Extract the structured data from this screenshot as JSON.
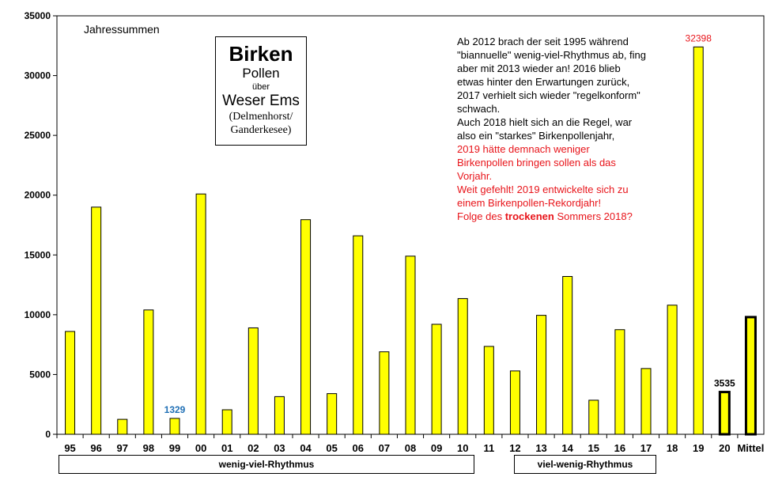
{
  "chart_data": {
    "type": "bar",
    "subtitle": "Jahressummen",
    "categories": [
      "95",
      "96",
      "97",
      "98",
      "99",
      "00",
      "01",
      "02",
      "03",
      "04",
      "05",
      "06",
      "07",
      "08",
      "09",
      "10",
      "11",
      "12",
      "13",
      "14",
      "15",
      "16",
      "17",
      "18",
      "19",
      "20",
      "Mittel"
    ],
    "values": [
      8600,
      19000,
      1250,
      10400,
      1329,
      20100,
      2050,
      8900,
      3150,
      17950,
      3400,
      16600,
      6900,
      14900,
      9200,
      11350,
      7350,
      5300,
      9950,
      13200,
      2850,
      8750,
      5500,
      10800,
      32398,
      3535,
      9800
    ],
    "labels": {
      "99": "1329",
      "19": "32398",
      "20": "3535"
    },
    "ylim": [
      0,
      35000
    ],
    "yticks": [
      "0",
      "5000",
      "10000",
      "15000",
      "20000",
      "25000",
      "30000",
      "35000"
    ],
    "grid": false,
    "bar_color": "#ffff00",
    "label_colors": {
      "99": "#1f6fb5",
      "19": "#e8141a",
      "20": "#000000"
    }
  },
  "title_box": {
    "title": "Birken",
    "line1": "Pollen",
    "line2": "über",
    "line3": "Weser Ems",
    "line4": "(Delmenhorst/",
    "line5": "Ganderkesee)"
  },
  "note": {
    "p1": "Ab 2012 brach der seit 1995 während \"biannuelle\" wenig-viel-Rhythmus ab, fing aber mit 2013 wieder an! 2016 blieb etwas hinter den Erwartungen zurück, 2017 verhielt sich wieder \"regelkonform\" schwach.",
    "p2": "Auch 2018 hielt sich an die Regel, war also ein \"starkes\" Birkenpollenjahr,",
    "p3": "2019 hätte demnach weniger Birkenpollen bringen sollen als das Vorjahr.",
    "p4": "Weit gefehlt! 2019 entwickelte sich zu einem Birkenpollen-Rekordjahr!",
    "p5_pre": "Folge des ",
    "p5_bold": "trockenen",
    "p5_post": " Sommers 2018?"
  },
  "phases": {
    "left": "wenig-viel-Rhythmus",
    "right": "viel-wenig-Rhythmus"
  }
}
